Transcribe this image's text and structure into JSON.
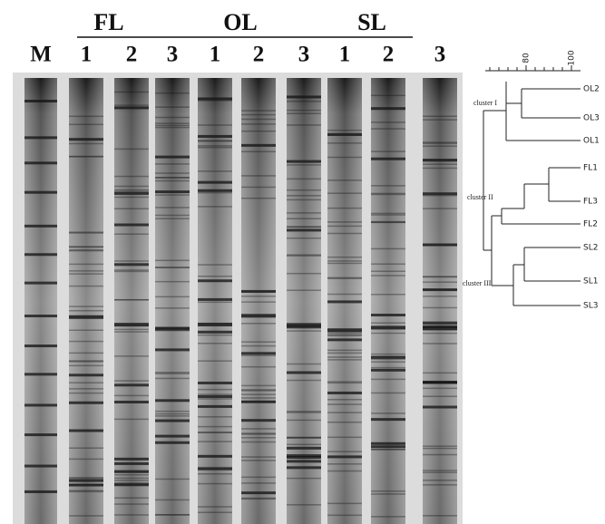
{
  "figure": {
    "marker": "M",
    "groups": [
      {
        "label": "FL",
        "lanes": [
          "1",
          "2",
          "3"
        ]
      },
      {
        "label": "OL",
        "lanes": [
          "1",
          "2",
          "3"
        ]
      },
      {
        "label": "SL",
        "lanes": [
          "1",
          "2",
          "3"
        ]
      }
    ],
    "dendrogram": {
      "scale_ticks": [
        "80",
        "100"
      ],
      "leaves": [
        "OL2",
        "OL3",
        "OL1",
        "FL1",
        "FL3",
        "FL2",
        "SL2",
        "SL1",
        "SL3"
      ],
      "clusters": [
        "cluster I",
        "cluster II",
        "cluster III"
      ]
    }
  }
}
